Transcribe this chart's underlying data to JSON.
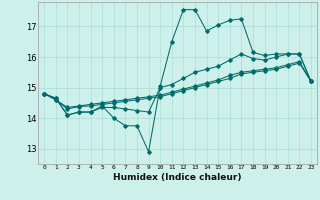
{
  "xlabel": "Humidex (Indice chaleur)",
  "bg_color": "#cef0ea",
  "line_color": "#006b6b",
  "grid_color": "#aaddd8",
  "x_ticks": [
    0,
    1,
    2,
    3,
    4,
    5,
    6,
    7,
    8,
    9,
    10,
    11,
    12,
    13,
    14,
    15,
    16,
    17,
    18,
    19,
    20,
    21,
    22,
    23
  ],
  "y_ticks": [
    13,
    14,
    15,
    16,
    17
  ],
  "ylim": [
    12.5,
    17.8
  ],
  "xlim": [
    -0.5,
    23.5
  ],
  "series": [
    [
      14.8,
      14.65,
      14.1,
      14.2,
      14.2,
      14.4,
      14.0,
      13.75,
      13.75,
      12.9,
      15.05,
      16.5,
      17.55,
      17.55,
      16.85,
      17.05,
      17.2,
      17.25,
      16.15,
      16.05,
      16.1,
      16.1,
      16.1,
      15.2
    ],
    [
      14.8,
      14.65,
      14.1,
      14.2,
      14.2,
      14.35,
      14.35,
      14.3,
      14.25,
      14.2,
      15.0,
      15.1,
      15.3,
      15.5,
      15.6,
      15.7,
      15.9,
      16.1,
      15.95,
      15.9,
      16.0,
      16.1,
      16.1,
      15.2
    ],
    [
      14.8,
      14.6,
      14.35,
      14.4,
      14.45,
      14.5,
      14.55,
      14.6,
      14.65,
      14.7,
      14.75,
      14.85,
      14.95,
      15.05,
      15.15,
      15.25,
      15.4,
      15.5,
      15.55,
      15.6,
      15.65,
      15.75,
      15.85,
      15.2
    ],
    [
      14.8,
      14.6,
      14.3,
      14.38,
      14.4,
      14.45,
      14.5,
      14.55,
      14.6,
      14.65,
      14.7,
      14.8,
      14.9,
      15.0,
      15.1,
      15.2,
      15.3,
      15.45,
      15.5,
      15.55,
      15.6,
      15.7,
      15.8,
      15.2
    ]
  ]
}
